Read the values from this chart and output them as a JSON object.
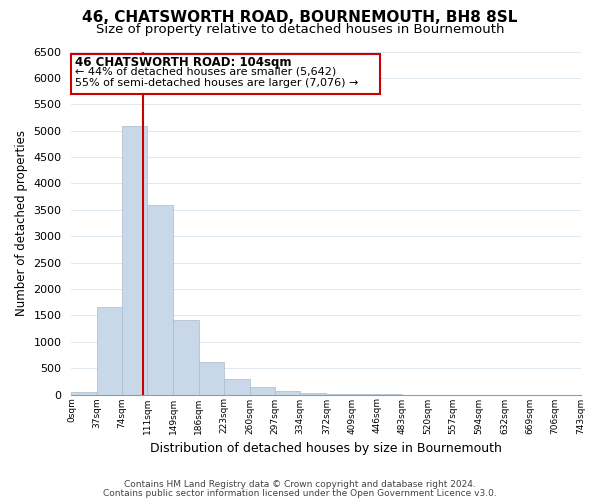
{
  "title": "46, CHATSWORTH ROAD, BOURNEMOUTH, BH8 8SL",
  "subtitle": "Size of property relative to detached houses in Bournemouth",
  "xlabel": "Distribution of detached houses by size in Bournemouth",
  "ylabel": "Number of detached properties",
  "bar_edges": [
    0,
    37,
    74,
    111,
    149,
    186,
    223,
    260,
    297,
    334,
    372,
    409,
    446,
    483,
    520,
    557,
    594,
    632,
    669,
    706,
    743
  ],
  "bar_heights": [
    50,
    1650,
    5080,
    3600,
    1420,
    610,
    300,
    145,
    60,
    20,
    10,
    5,
    2,
    0,
    0,
    0,
    0,
    0,
    0,
    0
  ],
  "bar_color": "#c8d8e8",
  "bar_edge_color": "#aabbcc",
  "vline_x": 104,
  "vline_color": "#cc0000",
  "ylim": [
    0,
    6500
  ],
  "yticks": [
    0,
    500,
    1000,
    1500,
    2000,
    2500,
    3000,
    3500,
    4000,
    4500,
    5000,
    5500,
    6000,
    6500
  ],
  "xtick_labels": [
    "0sqm",
    "37sqm",
    "74sqm",
    "111sqm",
    "149sqm",
    "186sqm",
    "223sqm",
    "260sqm",
    "297sqm",
    "334sqm",
    "372sqm",
    "409sqm",
    "446sqm",
    "483sqm",
    "520sqm",
    "557sqm",
    "594sqm",
    "632sqm",
    "669sqm",
    "706sqm",
    "743sqm"
  ],
  "annotation_title": "46 CHATSWORTH ROAD: 104sqm",
  "annotation_line1": "← 44% of detached houses are smaller (5,642)",
  "annotation_line2": "55% of semi-detached houses are larger (7,076) →",
  "annotation_box_color": "#ffffff",
  "annotation_box_edge": "#cc0000",
  "grid_color": "#dce8f0",
  "footer_line1": "Contains HM Land Registry data © Crown copyright and database right 2024.",
  "footer_line2": "Contains public sector information licensed under the Open Government Licence v3.0.",
  "background_color": "#ffffff",
  "title_fontsize": 11,
  "subtitle_fontsize": 9.5
}
